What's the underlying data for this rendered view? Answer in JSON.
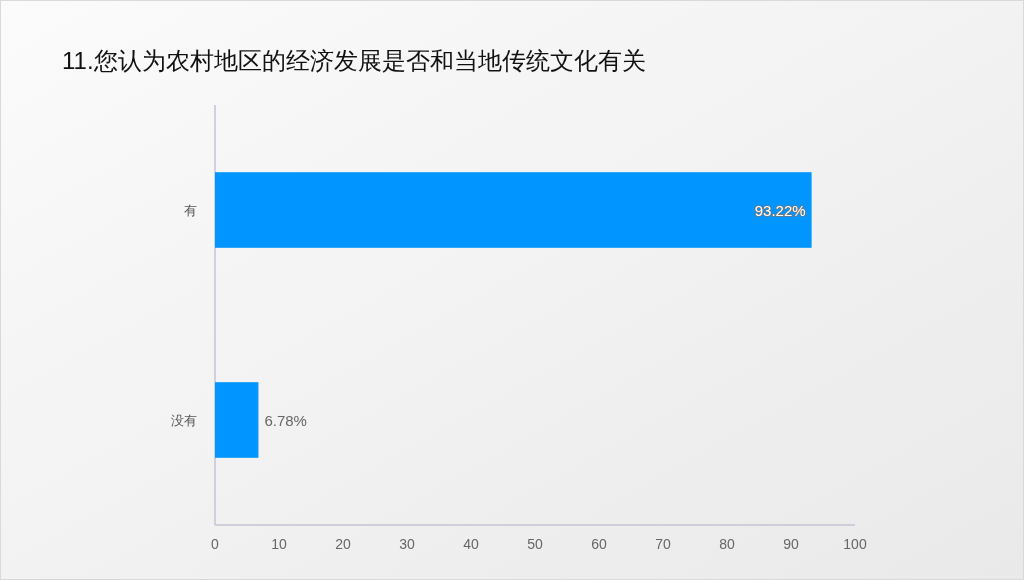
{
  "chart_data": {
    "type": "bar",
    "orientation": "horizontal",
    "title": "11.您认为农村地区的经济发展是否和当地传统文化有关",
    "categories": [
      "有",
      "没有"
    ],
    "values": [
      93.22,
      6.78
    ],
    "color": "#0095ff",
    "value_labels": [
      "93.22%",
      "6.78%"
    ],
    "xlim": [
      0,
      100
    ],
    "xticks": [
      0,
      10,
      20,
      30,
      40,
      50,
      60,
      70,
      80,
      90,
      100
    ],
    "grid": false
  }
}
